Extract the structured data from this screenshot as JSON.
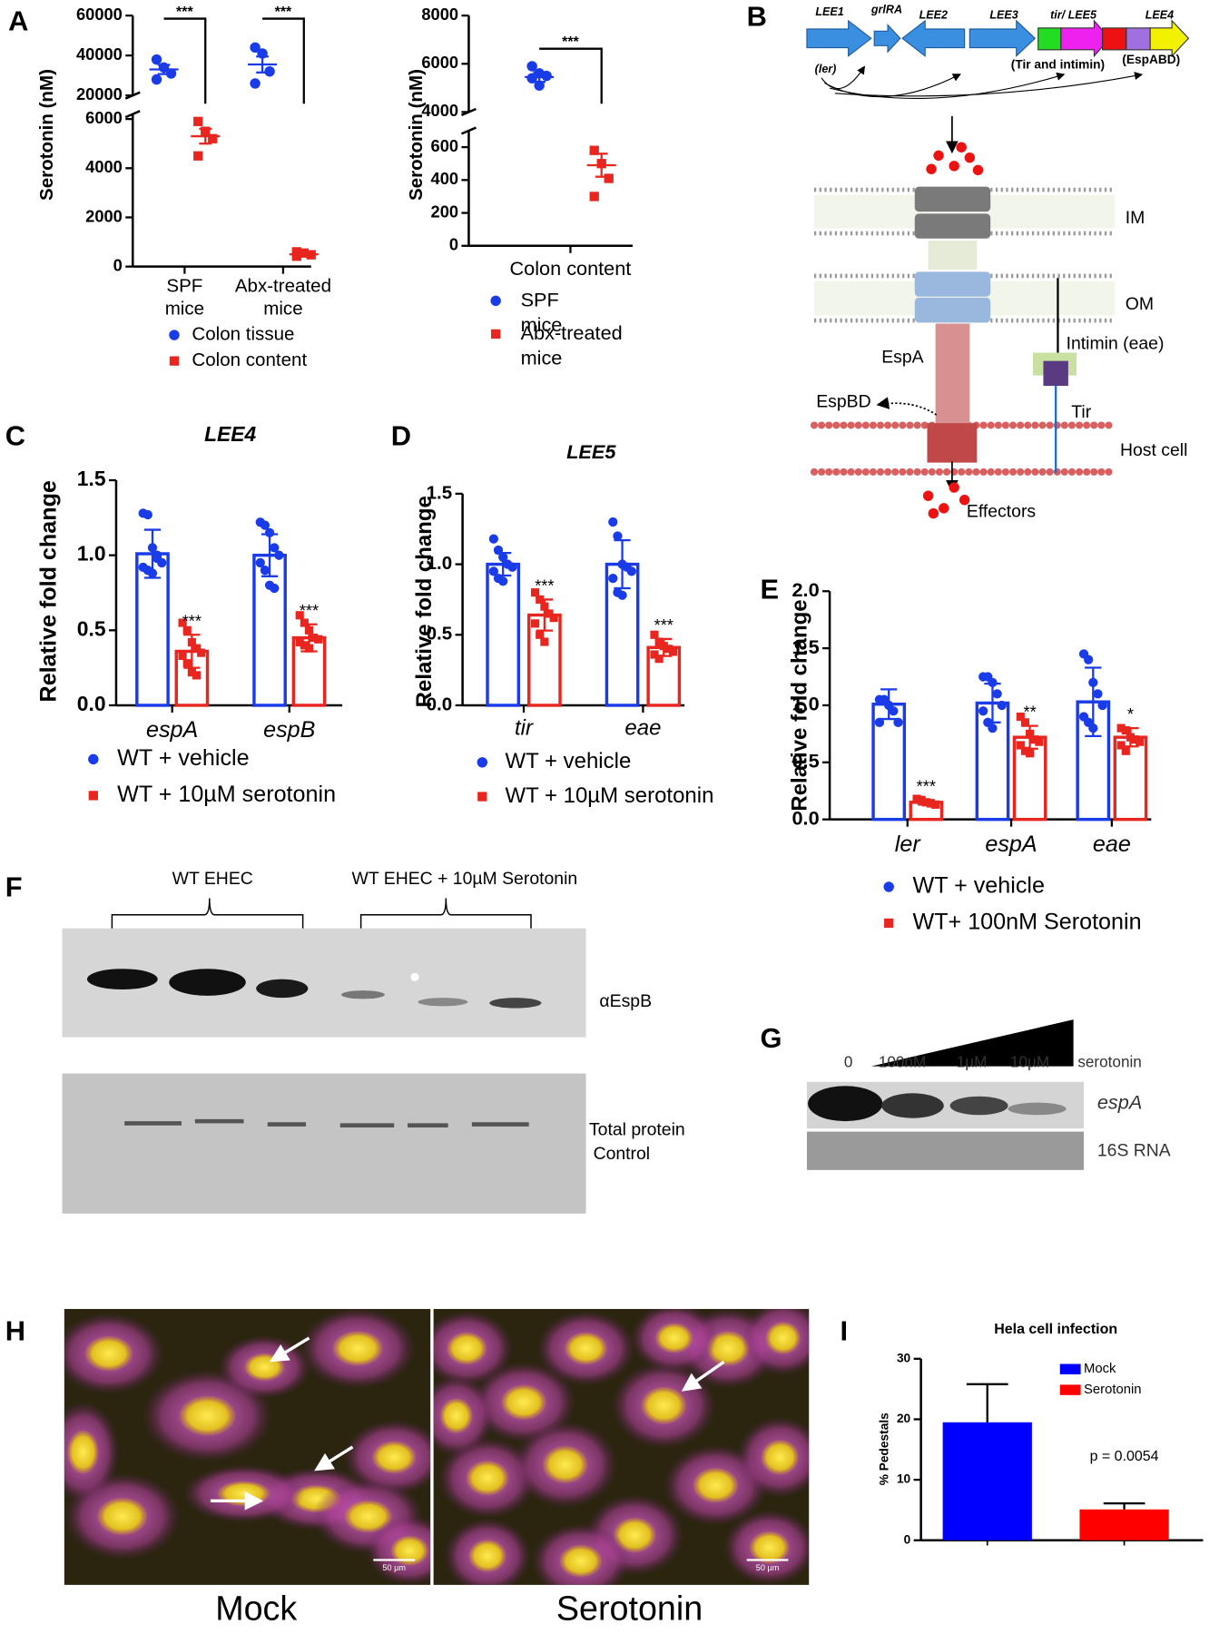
{
  "panel_labels": [
    "A",
    "B",
    "C",
    "D",
    "E",
    "F",
    "G",
    "H",
    "I"
  ],
  "chart_data": [
    {
      "type": "dot",
      "ylabel": "Serotonin (nM)",
      "categories": [
        "SPF mice",
        "Abx-treated mice"
      ],
      "series": [
        {
          "name": "Colon tissue",
          "color": "#1a3be8",
          "marker": "circle",
          "values": [
            [
              38000,
              34000,
              31000,
              28000
            ],
            [
              44000,
              41000,
              32000,
              26000
            ]
          ],
          "means": [
            33000,
            35500
          ],
          "errors": [
            2300,
            4000
          ]
        },
        {
          "name": "Colon content",
          "color": "#e8251f",
          "marker": "square",
          "values": [
            [
              5900,
              5500,
              5200,
              4500
            ],
            [
              600,
              550,
              480,
              420
            ]
          ],
          "means": [
            5300,
            500
          ],
          "errors": [
            300,
            40
          ]
        }
      ],
      "ylim": [
        0,
        60000
      ],
      "ybreak": [
        6200,
        20000
      ],
      "yticks": [
        0,
        2000,
        4000,
        6000,
        20000,
        40000,
        60000
      ],
      "significance": [
        "***",
        "***"
      ],
      "legend": "bottom"
    },
    {
      "type": "dot",
      "ylabel": "Serotonin (nM)",
      "categories": [
        "Colon content"
      ],
      "series": [
        {
          "name": "SPF mice",
          "color": "#1a3be8",
          "marker": "circle",
          "values": [
            [
              5900,
              5600,
              5500,
              5400,
              5100
            ]
          ],
          "means": [
            5450
          ],
          "errors": [
            200
          ]
        },
        {
          "name": "Abx-treated mice",
          "color": "#e8251f",
          "marker": "square",
          "values": [
            [
              580,
              500,
              410,
              300
            ]
          ],
          "means": [
            490
          ],
          "errors": [
            70
          ]
        }
      ],
      "ylim": [
        0,
        8000
      ],
      "ybreak": [
        700,
        4000
      ],
      "yticks": [
        0,
        200,
        400,
        600,
        4000,
        6000,
        8000
      ],
      "significance": [
        "***"
      ],
      "legend": "bottom"
    },
    {
      "type": "bar",
      "title": "LEE4",
      "ylabel": "Relative fold change",
      "categories": [
        "espA",
        "espB"
      ],
      "series": [
        {
          "name": "WT + vehicle",
          "color": "#1a3be8",
          "marker": "circle",
          "values": [
            1.01,
            1.0
          ],
          "errors": [
            0.16,
            0.14
          ],
          "points": [
            [
              1.28,
              1.27,
              1.05,
              1.0,
              0.95,
              0.92,
              0.9,
              0.88,
              0.98
            ],
            [
              1.22,
              1.2,
              1.15,
              1.05,
              1.0,
              0.95,
              0.9,
              0.8,
              0.78
            ]
          ]
        },
        {
          "name": "WT + 10µM serotonin",
          "color": "#e8251f",
          "marker": "square",
          "values": [
            0.36,
            0.45
          ],
          "errors": [
            0.11,
            0.09
          ],
          "points": [
            [
              0.55,
              0.5,
              0.42,
              0.38,
              0.35,
              0.33,
              0.28,
              0.22,
              0.2
            ],
            [
              0.6,
              0.55,
              0.5,
              0.45,
              0.44,
              0.42,
              0.4,
              0.38
            ]
          ]
        }
      ],
      "ylim": [
        0,
        1.5
      ],
      "yticks": [
        {
          "value": 0,
          "label": "0.0"
        },
        0.5,
        {
          "value": 1,
          "label": "1.0"
        },
        1.5
      ],
      "significance": [
        "***",
        "***"
      ],
      "bar_style": "outline",
      "legend": "bottom"
    },
    {
      "type": "bar",
      "title": "LEE5",
      "ylabel": "Relative fold change",
      "categories": [
        "tir",
        "eae"
      ],
      "series": [
        {
          "name": "WT + vehicle",
          "color": "#1a3be8",
          "marker": "circle",
          "values": [
            1.0,
            1.0
          ],
          "errors": [
            0.08,
            0.17
          ],
          "points": [
            [
              1.18,
              1.1,
              1.05,
              1.0,
              0.98,
              0.95,
              0.9,
              0.88
            ],
            [
              1.3,
              1.2,
              1.0,
              0.98,
              0.95,
              0.9,
              0.8,
              0.78
            ]
          ]
        },
        {
          "name": "WT + 10µM serotonin",
          "color": "#e8251f",
          "marker": "square",
          "values": [
            0.64,
            0.41
          ],
          "errors": [
            0.11,
            0.06
          ],
          "points": [
            [
              0.8,
              0.75,
              0.7,
              0.65,
              0.62,
              0.58,
              0.5,
              0.45
            ],
            [
              0.5,
              0.45,
              0.42,
              0.4,
              0.38,
              0.36,
              0.33
            ]
          ]
        }
      ],
      "ylim": [
        0,
        1.5
      ],
      "yticks": [
        {
          "value": 0,
          "label": "0.0"
        },
        0.5,
        {
          "value": 1,
          "label": "1.0"
        },
        1.5
      ],
      "significance": [
        "***",
        "***"
      ],
      "bar_style": "outline",
      "legend": "bottom"
    },
    {
      "type": "bar",
      "ylabel": "Relative fold change",
      "categories": [
        "ler",
        "espA",
        "eae"
      ],
      "series": [
        {
          "name": "WT + vehicle",
          "color": "#1a3be8",
          "marker": "circle",
          "values": [
            1.01,
            1.02,
            1.03
          ],
          "errors": [
            0.13,
            0.17,
            0.3
          ],
          "points": [
            [
              1.05,
              1.05,
              1.0,
              0.95,
              0.85,
              0.85
            ],
            [
              1.25,
              1.25,
              1.2,
              1.1,
              1.0,
              0.95,
              0.85,
              0.8
            ],
            [
              1.45,
              1.4,
              1.2,
              1.1,
              1.0,
              0.9,
              0.85,
              0.8
            ]
          ]
        },
        {
          "name": "WT+ 100nM Serotonin",
          "color": "#e8251f",
          "marker": "square",
          "values": [
            0.15,
            0.72,
            0.72
          ],
          "errors": [
            0.02,
            0.1,
            0.08
          ],
          "points": [
            [
              0.18,
              0.17,
              0.15,
              0.14,
              0.13
            ],
            [
              0.9,
              0.85,
              0.75,
              0.7,
              0.68,
              0.65,
              0.6,
              0.58
            ],
            [
              0.8,
              0.78,
              0.72,
              0.7,
              0.68,
              0.65,
              0.6
            ]
          ]
        }
      ],
      "ylim": [
        0,
        2
      ],
      "yticks": [
        {
          "value": 0,
          "label": "0.0"
        },
        0.5,
        {
          "value": 1,
          "label": "1.0"
        },
        1.5,
        {
          "value": 2,
          "label": "2.0"
        }
      ],
      "significance": [
        "***",
        "**",
        "*"
      ],
      "bar_style": "outline",
      "legend": "bottom"
    },
    {
      "type": "bar",
      "title": "Hela cell infection",
      "ylabel": "% Pedestals",
      "series": [
        {
          "name": "Mock",
          "color": "#0000ff",
          "values": [
            19.5
          ],
          "errors": [
            6.3
          ]
        },
        {
          "name": "Serotonin",
          "color": "#ff0000",
          "values": [
            5.1
          ],
          "errors": [
            1.0
          ]
        }
      ],
      "ylim": [
        0,
        30
      ],
      "yticks": [
        0,
        10,
        20,
        30
      ],
      "note": "p = 0.0054",
      "bar_style": "solid",
      "legend": "upper right"
    }
  ],
  "diagram": {
    "genes": [
      "LEE1",
      "grlRA",
      "LEE2",
      "LEE3",
      "tir/ LEE5",
      "LEE4"
    ],
    "gene_notes": [
      "(ler)",
      "(Tir and intimin)",
      "(EspABD)"
    ],
    "labels": [
      "IM",
      "OM",
      "EspA",
      "Intimin (eae)",
      "EspBD",
      "Tir",
      "Host cell",
      "Effectors"
    ]
  },
  "blot_f": {
    "groups": [
      "WT EHEC",
      "WT EHEC + 10µM Serotonin"
    ],
    "labels": [
      "αEspB",
      "Total protein",
      "Control"
    ]
  },
  "blot_g": {
    "lanes": [
      "0",
      "100nM",
      "1µM",
      "10µM",
      "serotonin"
    ],
    "rows": [
      "espA",
      "16S RNA"
    ]
  },
  "micrographs": {
    "panels": [
      "Mock",
      "Serotonin"
    ],
    "scale_bar": "50 µm"
  }
}
